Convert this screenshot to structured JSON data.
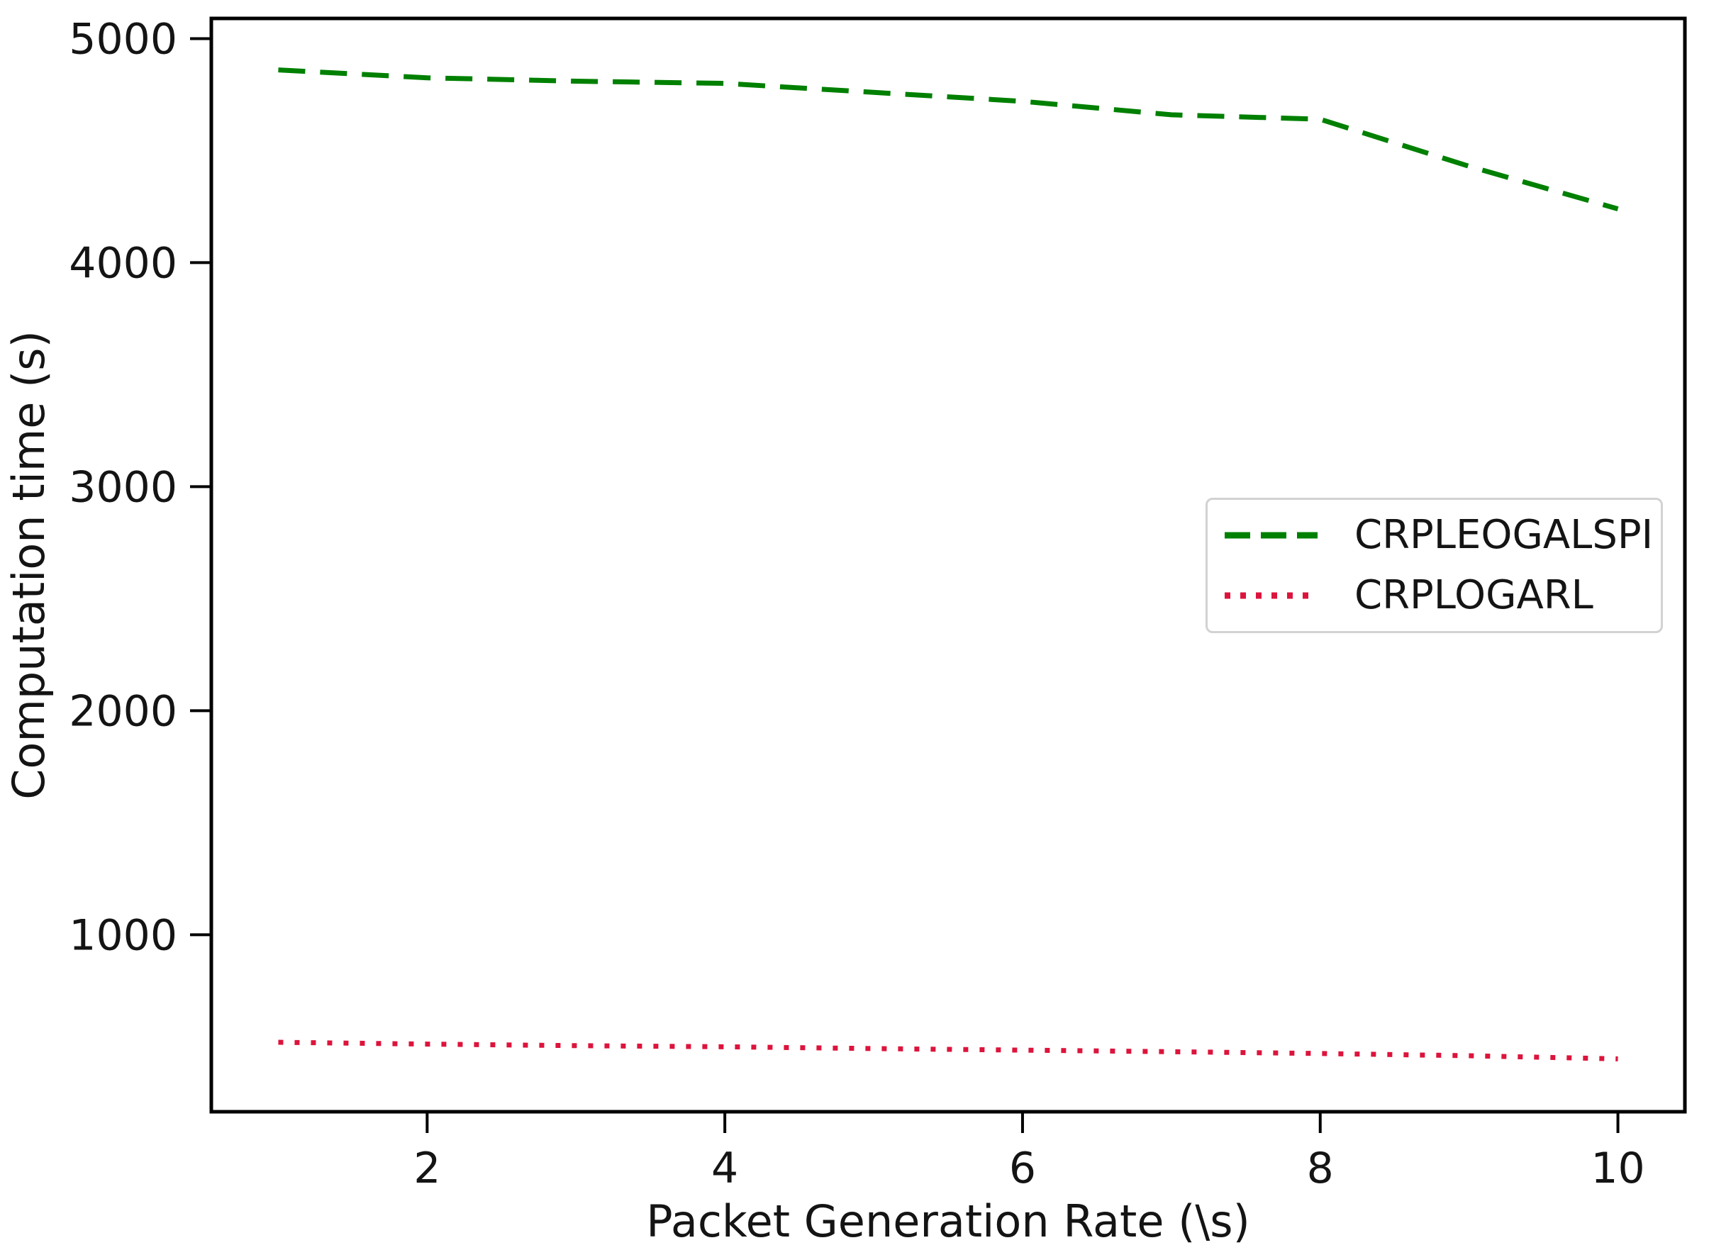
{
  "chart_data": {
    "type": "line",
    "title": "",
    "xlabel": "Packet Generation Rate (\\s)",
    "ylabel": "Computation time (s)",
    "x": [
      1,
      2,
      3,
      4,
      5,
      6,
      7,
      8,
      9,
      10
    ],
    "x_ticks": [
      "2",
      "4",
      "6",
      "8",
      "10"
    ],
    "x_tick_values": [
      2,
      4,
      6,
      8,
      10
    ],
    "y_ticks": [
      "1000",
      "2000",
      "3000",
      "4000",
      "5000"
    ],
    "y_tick_values": [
      1000,
      2000,
      3000,
      4000,
      5000
    ],
    "xlim": [
      0.55,
      10.45
    ],
    "ylim": [
      210,
      5090
    ],
    "grid": false,
    "legend_position": "center right",
    "axis_color": "#000000",
    "text_color": "#141414",
    "series": [
      {
        "name": "CRPLEOGALSPI",
        "color": "#008000",
        "style": "dashed",
        "values": [
          4860,
          4825,
          4810,
          4800,
          4760,
          4720,
          4660,
          4640,
          4430,
          4240
        ]
      },
      {
        "name": "CRPLOGARL",
        "color": "#dc143c",
        "style": "dotted",
        "values": [
          520,
          512,
          505,
          500,
          492,
          485,
          478,
          470,
          460,
          446
        ]
      }
    ]
  }
}
